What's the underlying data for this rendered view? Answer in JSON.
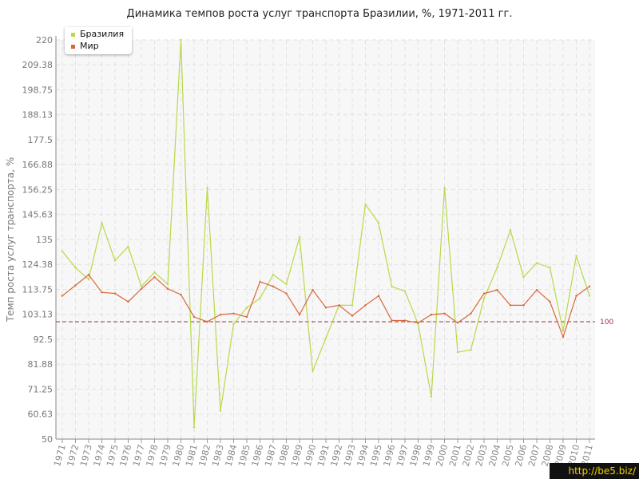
{
  "chart_data": {
    "type": "line",
    "title": "Динамика темпов роста услуг транспорта Бразилии, %, 1971-2011 гг.",
    "ylabel": "Темп роста услуг транспорта, %",
    "xlabel": "",
    "ylim": [
      50,
      220
    ],
    "y_ticks": [
      "50",
      "60.63",
      "71.25",
      "81.88",
      "92.5",
      "103.13",
      "113.75",
      "124.38",
      "135",
      "145.63",
      "156.25",
      "166.88",
      "177.5",
      "188.13",
      "198.75",
      "209.38",
      "220"
    ],
    "categories": [
      "1971",
      "1972",
      "1973",
      "1974",
      "1975",
      "1976",
      "1977",
      "1978",
      "1979",
      "1980",
      "1981",
      "1982",
      "1983",
      "1984",
      "1985",
      "1986",
      "1987",
      "1988",
      "1989",
      "1990",
      "1991",
      "1992",
      "1993",
      "1994",
      "1995",
      "1996",
      "1997",
      "1998",
      "1999",
      "2000",
      "2001",
      "2002",
      "2003",
      "2004",
      "2005",
      "2006",
      "2007",
      "2008",
      "2009",
      "2010",
      "2011"
    ],
    "series": [
      {
        "name": "Бразилия",
        "color": "#b8d94a",
        "values": [
          130,
          123,
          118,
          142,
          126,
          132,
          115,
          121,
          116,
          220,
          55,
          157,
          62,
          99,
          106,
          110,
          120,
          116,
          136,
          79,
          93,
          107,
          107,
          150,
          142,
          115,
          113,
          99,
          68,
          157,
          87,
          88,
          110,
          123,
          139,
          119,
          125,
          123,
          96,
          128,
          111
        ]
      },
      {
        "name": "Мир",
        "color": "#d9673a",
        "values": [
          111,
          115.5,
          120,
          112.5,
          112,
          108.5,
          114,
          119,
          114,
          111.5,
          102,
          100,
          103,
          103.5,
          102,
          117,
          115,
          112,
          103,
          113.5,
          106,
          107,
          102.5,
          107,
          111,
          100.5,
          100.5,
          99.5,
          103,
          103.5,
          99.5,
          103.5,
          112,
          113.5,
          107,
          107,
          113.5,
          108.5,
          93.5,
          111,
          115
        ]
      }
    ],
    "reference_line": {
      "value": 100,
      "label": "100",
      "color": "#a0304a"
    },
    "legend_position": "top-left",
    "grid": true
  },
  "watermark": "http://be5.biz/"
}
